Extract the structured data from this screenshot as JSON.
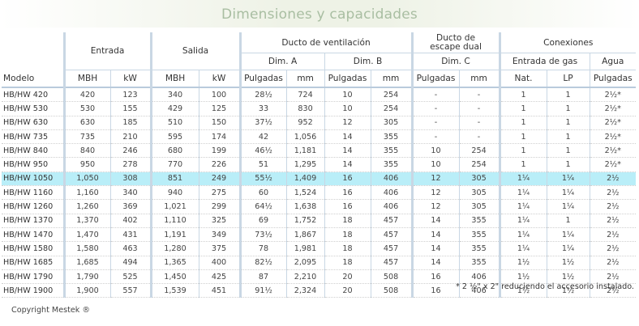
{
  "title": "Dimensiones y capacidades",
  "headers": {
    "entrada": "Entrada",
    "salida": "Salida",
    "ducto_ventilacion": "Ducto de ventilación",
    "ducto_escape": "Ducto de\nescape dual",
    "conexiones": "Conexiones",
    "dim_a": "Dim. A",
    "dim_b": "Dim. B",
    "dim_c": "Dim. C",
    "entrada_gas": "Entrada de gas",
    "agua": "Agua",
    "modelo": "Modelo",
    "mbh": "MBH",
    "kw": "kW",
    "pulgadas": "Pulgadas",
    "mm": "mm",
    "nat": "Nat.",
    "lp": "LP"
  },
  "rows": [
    [
      "HB/HW 420",
      "420",
      "123",
      "340",
      "100",
      "28½",
      "724",
      "10",
      "254",
      "-",
      "-",
      "1",
      "1",
      "2½*"
    ],
    [
      "HB/HW 530",
      "530",
      "155",
      "429",
      "125",
      "33",
      "830",
      "10",
      "254",
      "-",
      "-",
      "1",
      "1",
      "2½*"
    ],
    [
      "HB/HW 630",
      "630",
      "185",
      "510",
      "150",
      "37½",
      "952",
      "12",
      "305",
      "-",
      "-",
      "1",
      "1",
      "2½*"
    ],
    [
      "HB/HW 735",
      "735",
      "210",
      "595",
      "174",
      "42",
      "1,056",
      "14",
      "355",
      "-",
      "-",
      "1",
      "1",
      "2½*"
    ],
    [
      "HB/HW 840",
      "840",
      "246",
      "680",
      "199",
      "46½",
      "1,181",
      "14",
      "355",
      "10",
      "254",
      "1",
      "1",
      "2½*"
    ],
    [
      "HB/HW 950",
      "950",
      "278",
      "770",
      "226",
      "51",
      "1,295",
      "14",
      "355",
      "10",
      "254",
      "1",
      "1",
      "2½*"
    ],
    [
      "HB/HW 1050",
      "1,050",
      "308",
      "851",
      "249",
      "55½",
      "1,409",
      "16",
      "406",
      "12",
      "305",
      "1¼",
      "1¼",
      "2½"
    ],
    [
      "HB/HW 1160",
      "1,160",
      "340",
      "940",
      "275",
      "60",
      "1,524",
      "16",
      "406",
      "12",
      "305",
      "1¼",
      "1¼",
      "2½"
    ],
    [
      "HB/HW 1260",
      "1,260",
      "369",
      "1,021",
      "299",
      "64½",
      "1,638",
      "16",
      "406",
      "12",
      "305",
      "1¼",
      "1¼",
      "2½"
    ],
    [
      "HB/HW 1370",
      "1,370",
      "402",
      "1,110",
      "325",
      "69",
      "1,752",
      "18",
      "457",
      "14",
      "355",
      "1¼",
      "1",
      "2½"
    ],
    [
      "HB/HW 1470",
      "1,470",
      "431",
      "1,191",
      "349",
      "73½",
      "1,867",
      "18",
      "457",
      "14",
      "355",
      "1¼",
      "1¼",
      "2½"
    ],
    [
      "HB/HW 1580",
      "1,580",
      "463",
      "1,280",
      "375",
      "78",
      "1,981",
      "18",
      "457",
      "14",
      "355",
      "1¼",
      "1¼",
      "2½"
    ],
    [
      "HB/HW 1685",
      "1,685",
      "494",
      "1,365",
      "400",
      "82½",
      "2,095",
      "18",
      "457",
      "14",
      "355",
      "1½",
      "1½",
      "2½"
    ],
    [
      "HB/HW 1790",
      "1,790",
      "525",
      "1,450",
      "425",
      "87",
      "2,210",
      "20",
      "508",
      "16",
      "406",
      "1½",
      "1½",
      "2½"
    ],
    [
      "HB/HW 1900",
      "1,900",
      "557",
      "1,539",
      "451",
      "91½",
      "2,324",
      "20",
      "508",
      "16",
      "406",
      "1½",
      "1½",
      "2½"
    ]
  ],
  "highlight_model": "HB/HW 1050",
  "highlight_color": "#b9eef8",
  "footnote": "* 2 ½\" x 2\" reduciendo el accesorio instalado.",
  "copyright": "Copyright Mestek ®"
}
